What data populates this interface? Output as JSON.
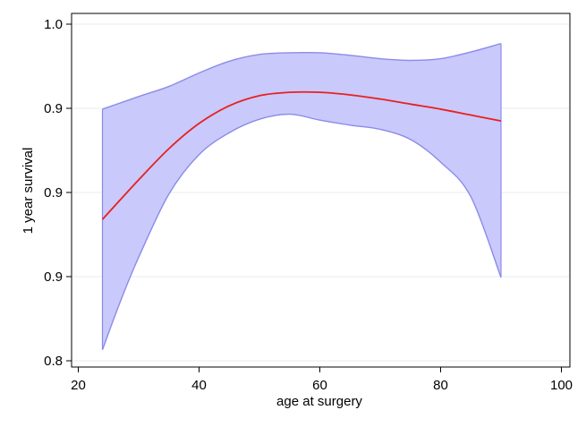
{
  "chart_data": {
    "type": "line",
    "title": "",
    "xlabel": "age at surgery",
    "ylabel": "1 year survival",
    "xlim": [
      20,
      100
    ],
    "ylim": [
      0.8,
      1.0
    ],
    "x_ticks": [
      20,
      40,
      60,
      80,
      100
    ],
    "x_tick_labels": [
      "20",
      "40",
      "60",
      "80",
      "100"
    ],
    "y_ticks": [
      0.8,
      0.85,
      0.9,
      0.95,
      1.0
    ],
    "y_tick_labels": [
      "0.8",
      "0.9",
      "0.9",
      "0.9",
      "1.0"
    ],
    "grid": "horizontal",
    "legend": "none",
    "colors": {
      "line": "#e8201f",
      "band_fill": "#c9c9fb",
      "band_edge": "#8b8bea",
      "grid": "#e6eef2"
    },
    "series": [
      {
        "role": "fit",
        "x": [
          24,
          30,
          35,
          40,
          45,
          50,
          55,
          60,
          65,
          70,
          75,
          80,
          85,
          90
        ],
        "y": [
          0.884,
          0.9075,
          0.926,
          0.941,
          0.9515,
          0.9575,
          0.9595,
          0.9595,
          0.958,
          0.9555,
          0.9525,
          0.9495,
          0.946,
          0.9425
        ]
      },
      {
        "role": "upper",
        "x": [
          24,
          30,
          35,
          40,
          45,
          50,
          55,
          60,
          65,
          70,
          75,
          80,
          85,
          90
        ],
        "y": [
          0.9495,
          0.957,
          0.963,
          0.971,
          0.978,
          0.982,
          0.983,
          0.983,
          0.9815,
          0.9795,
          0.9785,
          0.9795,
          0.9835,
          0.9885
        ]
      },
      {
        "role": "lower",
        "x": [
          24,
          27,
          30,
          35,
          40,
          45,
          50,
          55,
          60,
          65,
          70,
          75,
          80,
          85,
          90
        ],
        "y": [
          0.8065,
          0.8355,
          0.8615,
          0.899,
          0.9225,
          0.9355,
          0.9435,
          0.9465,
          0.943,
          0.94,
          0.9375,
          0.9315,
          0.918,
          0.8975,
          0.8495
        ]
      }
    ]
  }
}
